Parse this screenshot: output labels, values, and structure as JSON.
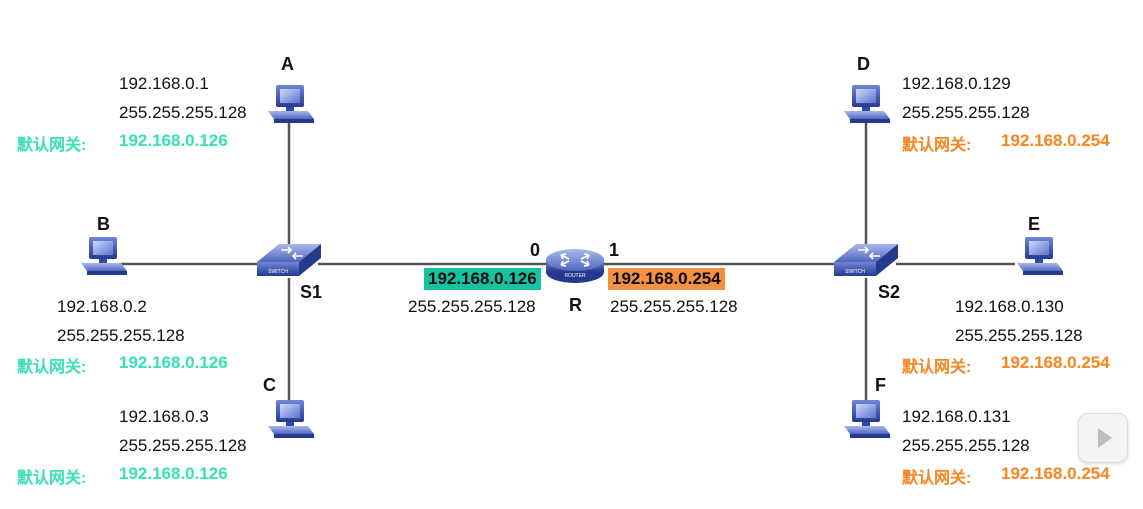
{
  "hosts": {
    "A": {
      "label": "A",
      "ip": "192.168.0.1",
      "mask": "255.255.255.128",
      "gw_label": "默认网关:",
      "gw": "192.168.0.126"
    },
    "B": {
      "label": "B",
      "ip": "192.168.0.2",
      "mask": "255.255.255.128",
      "gw_label": "默认网关:",
      "gw": "192.168.0.126"
    },
    "C": {
      "label": "C",
      "ip": "192.168.0.3",
      "mask": "255.255.255.128",
      "gw_label": "默认网关:",
      "gw": "192.168.0.126"
    },
    "D": {
      "label": "D",
      "ip": "192.168.0.129",
      "mask": "255.255.255.128",
      "gw_label": "默认网关:",
      "gw": "192.168.0.254"
    },
    "E": {
      "label": "E",
      "ip": "192.168.0.130",
      "mask": "255.255.255.128",
      "gw_label": "默认网关:",
      "gw": "192.168.0.254"
    },
    "F": {
      "label": "F",
      "ip": "192.168.0.131",
      "mask": "255.255.255.128",
      "gw_label": "默认网关:",
      "gw": "192.168.0.254"
    }
  },
  "switches": {
    "S1": {
      "label": "S1",
      "device_text": "SWITCH"
    },
    "S2": {
      "label": "S2",
      "device_text": "SWITCH"
    }
  },
  "router": {
    "label": "R",
    "device_text": "ROUTER",
    "if0": {
      "port": "0",
      "ip": "192.168.0.126",
      "mask": "255.255.255.128"
    },
    "if1": {
      "port": "1",
      "ip": "192.168.0.254",
      "mask": "255.255.255.128"
    }
  },
  "colors": {
    "left_gateway": "#3fe0b7",
    "right_gateway": "#f28a2a",
    "if0_highlight": "#17c2a0",
    "if1_highlight": "#f39041",
    "link_line": "#555555",
    "device_blue": "#2e4aa6"
  },
  "icons": {
    "play": "play-icon"
  }
}
